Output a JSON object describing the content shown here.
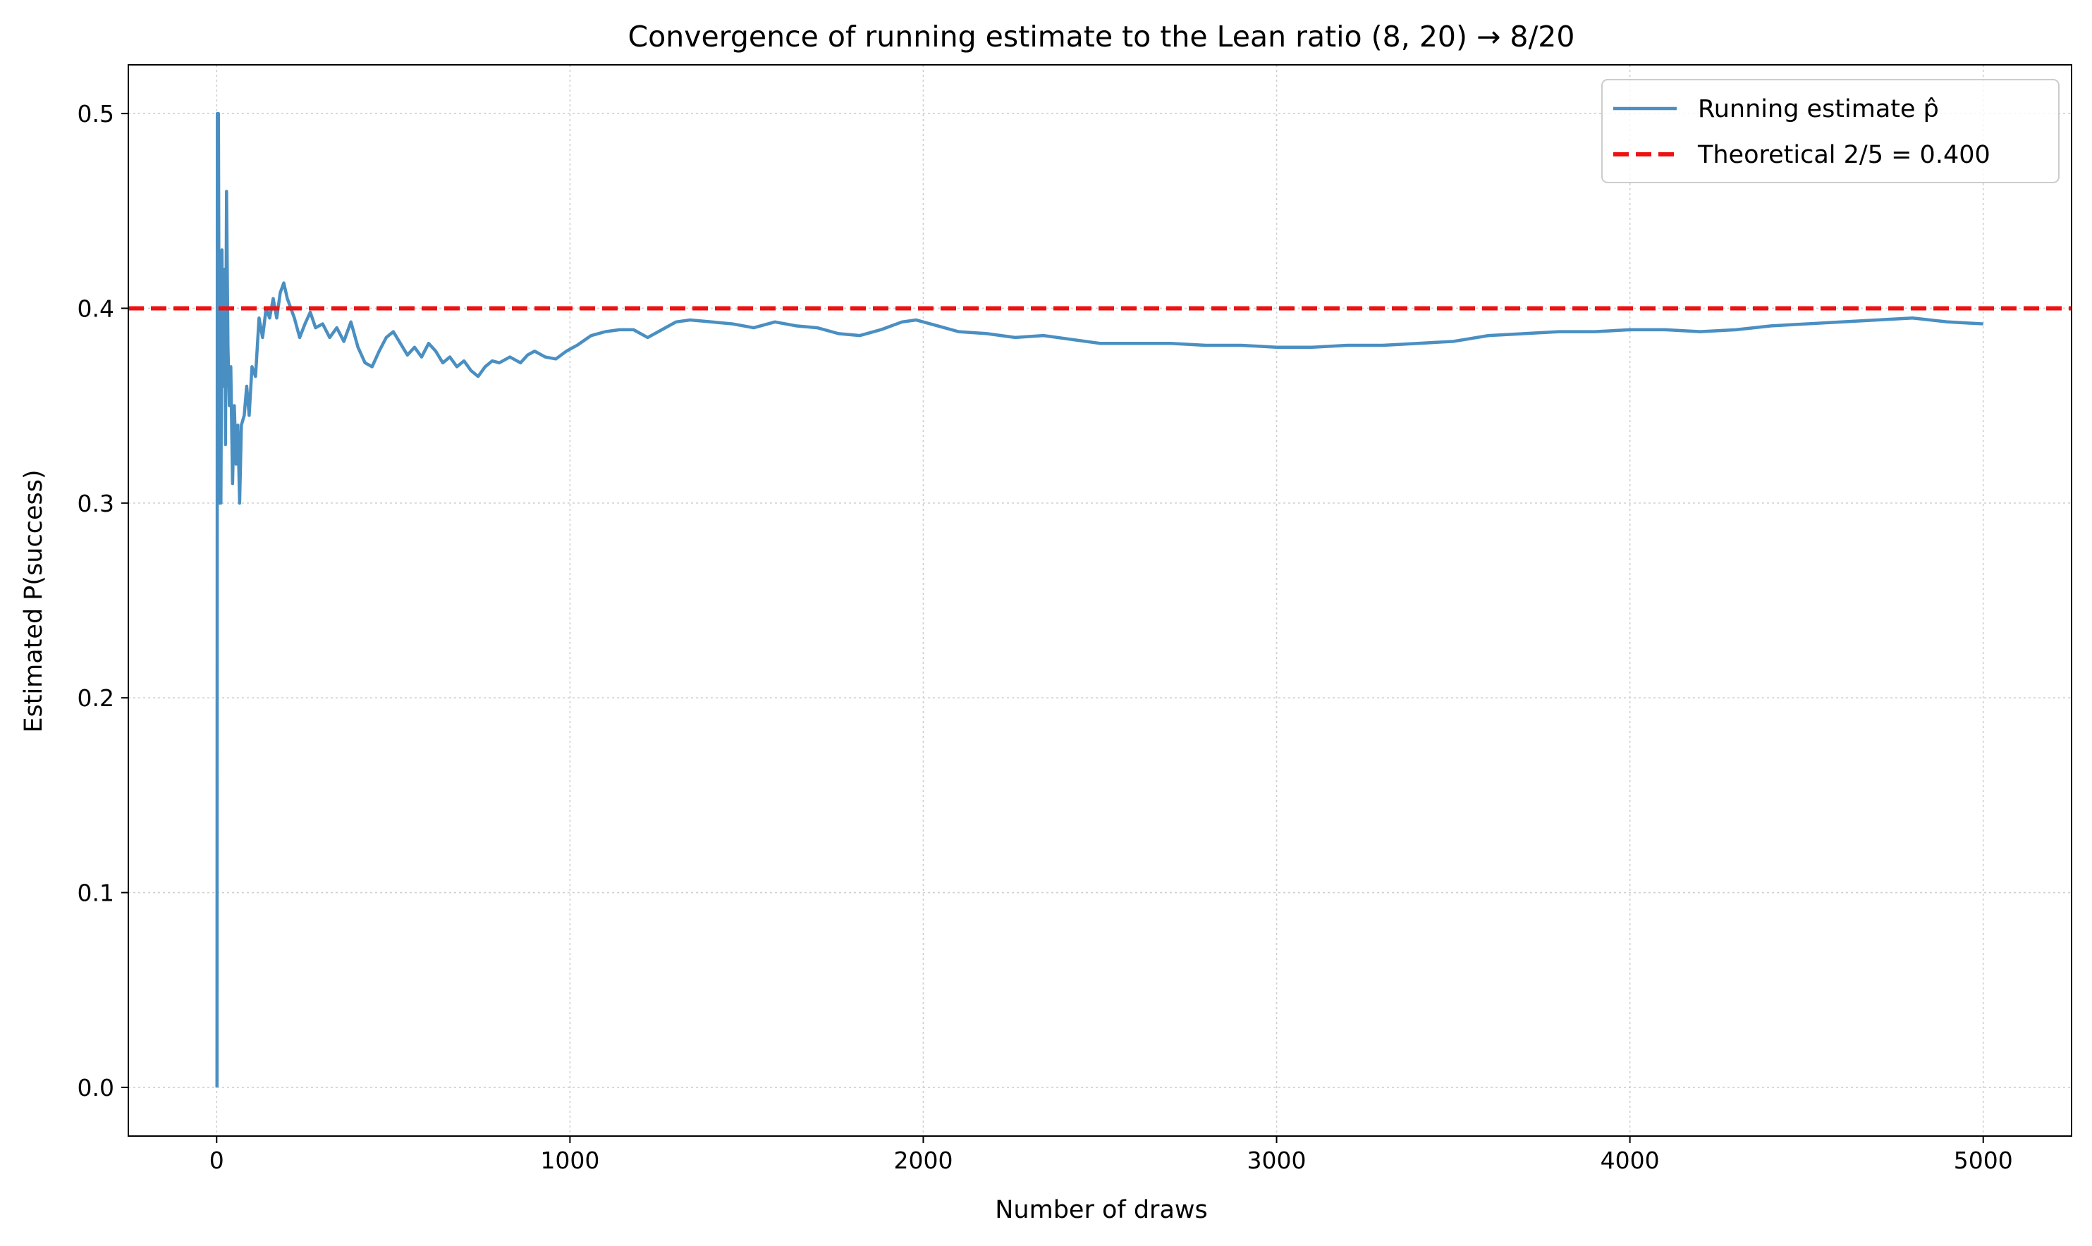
{
  "chart_data": {
    "type": "line",
    "title": "Convergence of running estimate to the Lean ratio (8, 20) → 8/20",
    "xlabel": "Number of draws",
    "ylabel": "Estimated P(success)",
    "xlim": [
      -250,
      5250
    ],
    "ylim": [
      -0.025,
      0.525
    ],
    "xticks": [
      0,
      1000,
      2000,
      3000,
      4000,
      5000
    ],
    "xtick_labels": [
      "0",
      "1000",
      "2000",
      "3000",
      "4000",
      "5000"
    ],
    "yticks": [
      0.0,
      0.1,
      0.2,
      0.3,
      0.4,
      0.5
    ],
    "ytick_labels": [
      "0.0",
      "0.1",
      "0.2",
      "0.3",
      "0.4",
      "0.5"
    ],
    "grid": true,
    "legend_position": "top-right",
    "colors": {
      "estimate": "#4a8fc2",
      "theoretical": "#ee1111"
    },
    "series": [
      {
        "name": "Running estimate p̂",
        "style": "solid",
        "points": [
          [
            1,
            0.0
          ],
          [
            2,
            0.5
          ],
          [
            5,
            0.5
          ],
          [
            8,
            0.3
          ],
          [
            10,
            0.4
          ],
          [
            12,
            0.3
          ],
          [
            15,
            0.43
          ],
          [
            18,
            0.36
          ],
          [
            22,
            0.42
          ],
          [
            25,
            0.33
          ],
          [
            28,
            0.46
          ],
          [
            32,
            0.38
          ],
          [
            36,
            0.35
          ],
          [
            40,
            0.37
          ],
          [
            45,
            0.31
          ],
          [
            50,
            0.35
          ],
          [
            55,
            0.32
          ],
          [
            60,
            0.34
          ],
          [
            65,
            0.3
          ],
          [
            70,
            0.34
          ],
          [
            78,
            0.345
          ],
          [
            85,
            0.36
          ],
          [
            92,
            0.345
          ],
          [
            100,
            0.37
          ],
          [
            110,
            0.365
          ],
          [
            120,
            0.395
          ],
          [
            130,
            0.385
          ],
          [
            140,
            0.4
          ],
          [
            150,
            0.395
          ],
          [
            160,
            0.405
          ],
          [
            170,
            0.395
          ],
          [
            180,
            0.408
          ],
          [
            190,
            0.413
          ],
          [
            200,
            0.405
          ],
          [
            210,
            0.4
          ],
          [
            220,
            0.395
          ],
          [
            235,
            0.385
          ],
          [
            250,
            0.392
          ],
          [
            265,
            0.398
          ],
          [
            280,
            0.39
          ],
          [
            300,
            0.392
          ],
          [
            320,
            0.385
          ],
          [
            340,
            0.39
          ],
          [
            360,
            0.383
          ],
          [
            380,
            0.393
          ],
          [
            400,
            0.38
          ],
          [
            420,
            0.372
          ],
          [
            440,
            0.37
          ],
          [
            460,
            0.378
          ],
          [
            480,
            0.385
          ],
          [
            500,
            0.388
          ],
          [
            520,
            0.382
          ],
          [
            540,
            0.376
          ],
          [
            560,
            0.38
          ],
          [
            580,
            0.375
          ],
          [
            600,
            0.382
          ],
          [
            620,
            0.378
          ],
          [
            640,
            0.372
          ],
          [
            660,
            0.375
          ],
          [
            680,
            0.37
          ],
          [
            700,
            0.373
          ],
          [
            720,
            0.368
          ],
          [
            740,
            0.365
          ],
          [
            760,
            0.37
          ],
          [
            780,
            0.373
          ],
          [
            800,
            0.372
          ],
          [
            830,
            0.375
          ],
          [
            860,
            0.372
          ],
          [
            880,
            0.376
          ],
          [
            900,
            0.378
          ],
          [
            930,
            0.375
          ],
          [
            960,
            0.374
          ],
          [
            990,
            0.378
          ],
          [
            1020,
            0.381
          ],
          [
            1060,
            0.386
          ],
          [
            1100,
            0.388
          ],
          [
            1140,
            0.389
          ],
          [
            1180,
            0.389
          ],
          [
            1220,
            0.385
          ],
          [
            1260,
            0.389
          ],
          [
            1300,
            0.393
          ],
          [
            1340,
            0.394
          ],
          [
            1400,
            0.393
          ],
          [
            1460,
            0.392
          ],
          [
            1520,
            0.39
          ],
          [
            1580,
            0.393
          ],
          [
            1640,
            0.391
          ],
          [
            1700,
            0.39
          ],
          [
            1760,
            0.387
          ],
          [
            1820,
            0.386
          ],
          [
            1880,
            0.389
          ],
          [
            1940,
            0.393
          ],
          [
            1980,
            0.394
          ],
          [
            2040,
            0.391
          ],
          [
            2100,
            0.388
          ],
          [
            2180,
            0.387
          ],
          [
            2260,
            0.385
          ],
          [
            2340,
            0.386
          ],
          [
            2420,
            0.384
          ],
          [
            2500,
            0.382
          ],
          [
            2600,
            0.382
          ],
          [
            2700,
            0.382
          ],
          [
            2800,
            0.381
          ],
          [
            2900,
            0.381
          ],
          [
            3000,
            0.38
          ],
          [
            3100,
            0.38
          ],
          [
            3200,
            0.381
          ],
          [
            3300,
            0.381
          ],
          [
            3400,
            0.382
          ],
          [
            3500,
            0.383
          ],
          [
            3600,
            0.386
          ],
          [
            3700,
            0.387
          ],
          [
            3800,
            0.388
          ],
          [
            3900,
            0.388
          ],
          [
            4000,
            0.389
          ],
          [
            4100,
            0.389
          ],
          [
            4200,
            0.388
          ],
          [
            4300,
            0.389
          ],
          [
            4400,
            0.391
          ],
          [
            4500,
            0.392
          ],
          [
            4600,
            0.393
          ],
          [
            4700,
            0.394
          ],
          [
            4800,
            0.395
          ],
          [
            4900,
            0.393
          ],
          [
            5000,
            0.392
          ]
        ]
      },
      {
        "name": "Theoretical 2/5 = 0.400",
        "style": "dashed",
        "y": 0.4
      }
    ]
  }
}
